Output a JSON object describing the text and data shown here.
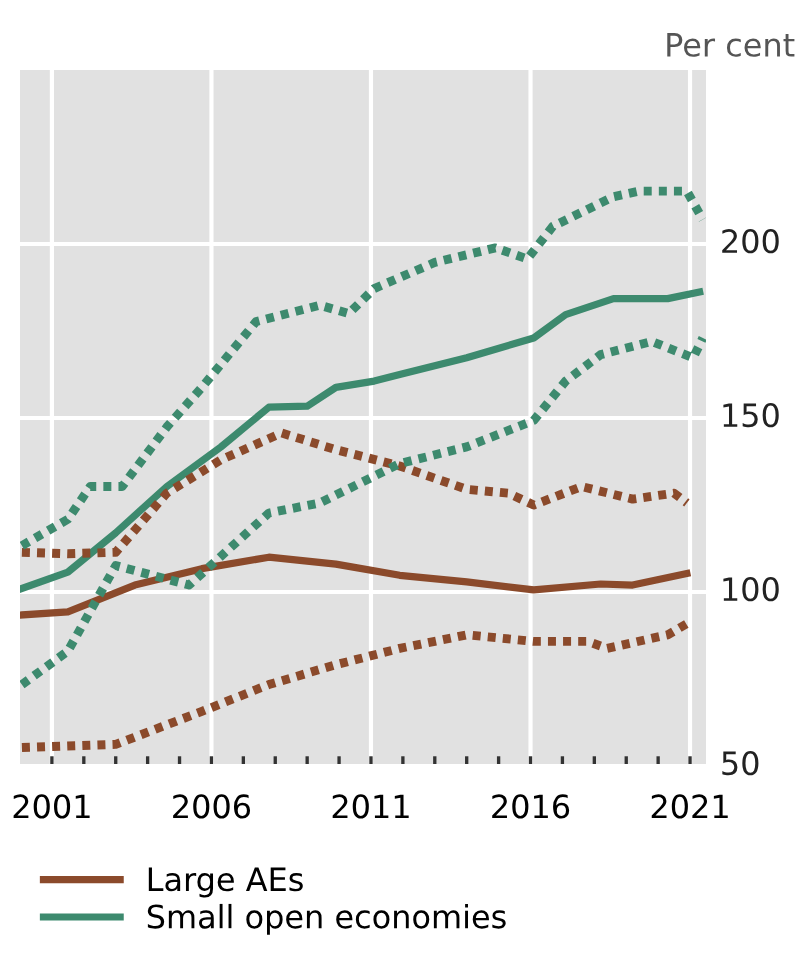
{
  "chart_data": {
    "type": "line",
    "ylabel": "Per cent",
    "xlim": [
      2000,
      2021.5
    ],
    "ylim": [
      50,
      250
    ],
    "xticks": [
      2001,
      {
        "value": 2002,
        "label": null
      },
      {
        "value": 2003,
        "label": null
      },
      {
        "value": 2004,
        "label": null
      },
      {
        "value": 2005,
        "label": null
      },
      2006,
      {
        "value": 2007,
        "label": null
      },
      {
        "value": 2008,
        "label": null
      },
      {
        "value": 2009,
        "label": null
      },
      {
        "value": 2010,
        "label": null
      },
      2011,
      {
        "value": 2012,
        "label": null
      },
      {
        "value": 2013,
        "label": null
      },
      {
        "value": 2014,
        "label": null
      },
      {
        "value": 2015,
        "label": null
      },
      2016,
      {
        "value": 2017,
        "label": null
      },
      {
        "value": 2018,
        "label": null
      },
      {
        "value": 2019,
        "label": null
      },
      {
        "value": 2020,
        "label": null
      },
      2021
    ],
    "yticks": [
      50,
      100,
      150,
      200
    ],
    "grid": true,
    "legend": "bottom left",
    "marker": "none",
    "series": [
      {
        "name": "Large AEs",
        "color": "#8b4a2b",
        "line_style": "solid",
        "x": [
          2000.06,
          2001.5,
          2003.6,
          2005.7,
          2007.8,
          2009.9,
          2011.9,
          2014,
          2016.1,
          2018.2,
          2019.2,
          2020.9
        ],
        "values": [
          93.4,
          94.3,
          102,
          106.7,
          110,
          108,
          104.8,
          102.9,
          100.6,
          102.3,
          102,
          105.3
        ]
      },
      {
        "name": "Small open economies",
        "color": "#3d8a6e",
        "line_style": "solid",
        "x": [
          2000.06,
          2001.5,
          2003,
          2004.6,
          2006.3,
          2007.8,
          2009,
          2009.9,
          2011.1,
          2011.9,
          2014,
          2016.1,
          2017.1,
          2018.6,
          2020.3,
          2021.3
        ],
        "values": [
          101,
          105.7,
          117,
          130.3,
          141.7,
          153.1,
          153.4,
          158.8,
          160.6,
          162.5,
          167.3,
          173,
          179.7,
          184.3,
          184.3,
          186.2
        ]
      },
      {
        "color": "#8b4a2b",
        "line_style": "dotted",
        "x": [
          2000.06,
          2001.5,
          2003,
          2004.6,
          2006.3,
          2008.2,
          2009.9,
          2011.9,
          2014,
          2015.3,
          2016.1,
          2017.6,
          2019.2,
          2020.5,
          2020.9
        ],
        "values": [
          111.4,
          111,
          111.4,
          128.4,
          138,
          145.7,
          140.9,
          136.2,
          129.5,
          128.4,
          125,
          130.3,
          126.7,
          128.4,
          125.6
        ]
      },
      {
        "color": "#8b4a2b",
        "line_style": "dotted",
        "x": [
          2000.06,
          2003,
          2005.7,
          2007.8,
          2009.9,
          2011.9,
          2014,
          2016.1,
          2017.8,
          2018.4,
          2020.3,
          2020.9
        ],
        "values": [
          55.3,
          56.2,
          65.7,
          73.4,
          79.1,
          83.8,
          87.7,
          85.8,
          85.8,
          83.8,
          87.7,
          90.9
        ]
      },
      {
        "color": "#3d8a6e",
        "line_style": "dotted",
        "x": [
          2000.06,
          2001.5,
          2002.2,
          2003.2,
          2004.6,
          2005.7,
          2007.4,
          2009.4,
          2010.3,
          2011.1,
          2013,
          2014.9,
          2015.9,
          2016.7,
          2018.6,
          2019.4,
          2020.9,
          2021.4
        ],
        "values": [
          113.3,
          120.9,
          130.3,
          130.3,
          147.4,
          158.8,
          177.7,
          182.4,
          180,
          187.2,
          194.7,
          198.9,
          195.7,
          205.1,
          213.6,
          215.2,
          215.2,
          207
        ]
      },
      {
        "color": "#3d8a6e",
        "line_style": "dotted",
        "x": [
          2000.06,
          2001.5,
          2003,
          2005.3,
          2007.8,
          2009.4,
          2011.9,
          2014,
          2016.1,
          2017.1,
          2018.2,
          2019.8,
          2021.1,
          2021.4
        ],
        "values": [
          73.4,
          83,
          107.6,
          102,
          122.7,
          125.6,
          136.9,
          141.7,
          149.3,
          160.6,
          168.2,
          172,
          167.3,
          173
        ]
      }
    ]
  }
}
